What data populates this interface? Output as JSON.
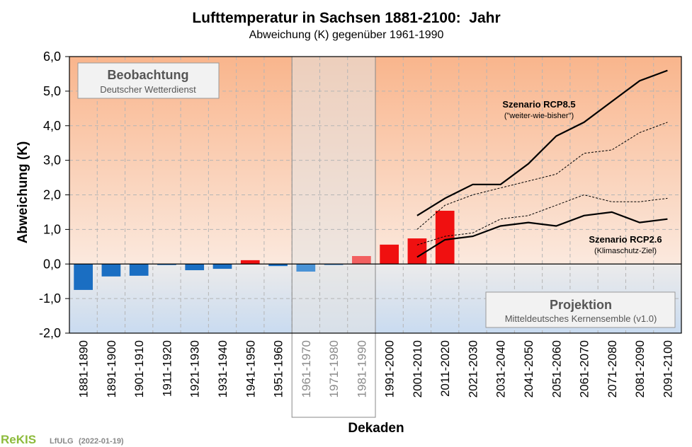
{
  "chart_data": {
    "type": "bar",
    "title": "Lufttemperatur in Sachsen 1881-2100:  Jahr",
    "subtitle": "Abweichung (K) gegenüber 1961-1990",
    "xlabel": "Dekaden",
    "ylabel": "Abweichung (K)",
    "ylim": [
      -2,
      6
    ],
    "yticks": [
      "-2,0",
      "-1,0",
      "0,0",
      "1,0",
      "2,0",
      "3,0",
      "4,0",
      "5,0",
      "6,0"
    ],
    "grid": true,
    "reference_period": "1961-1990",
    "categories": [
      "1881-1890",
      "1891-1900",
      "1901-1910",
      "1911-1920",
      "1921-1930",
      "1931-1940",
      "1941-1950",
      "1951-1960",
      "1961-1970",
      "1971-1980",
      "1981-1990",
      "1991-2000",
      "2001-2010",
      "2011-2020",
      "2021-2030",
      "2031-2040",
      "2041-2050",
      "2051-2060",
      "2061-2070",
      "2071-2080",
      "2081-2090",
      "2091-2100"
    ],
    "observation": {
      "name": "Beobachtung",
      "values": [
        -0.75,
        -0.36,
        -0.34,
        -0.03,
        -0.18,
        -0.14,
        0.11,
        -0.06,
        -0.22,
        -0.03,
        0.23,
        0.56,
        0.74,
        1.54
      ]
    },
    "projection_lines": [
      {
        "name": "Szenario RCP8.5",
        "style": "solid",
        "start_index": 12,
        "values": [
          1.4,
          1.9,
          2.3,
          2.3,
          2.9,
          3.7,
          4.1,
          4.7,
          5.3,
          5.6
        ]
      },
      {
        "name": "Szenario RCP8.5",
        "style": "dotted",
        "start_index": 12,
        "values": [
          1.0,
          1.7,
          2.0,
          2.2,
          2.4,
          2.6,
          3.2,
          3.3,
          3.8,
          4.1
        ]
      },
      {
        "name": "Szenario RCP2.6",
        "style": "dotted",
        "start_index": 12,
        "values": [
          0.55,
          0.8,
          0.9,
          1.3,
          1.4,
          1.7,
          2.0,
          1.8,
          1.8,
          1.9
        ]
      },
      {
        "name": "Szenario RCP2.6",
        "style": "solid",
        "start_index": 12,
        "values": [
          0.2,
          0.7,
          0.8,
          1.1,
          1.2,
          1.1,
          1.4,
          1.5,
          1.2,
          1.3
        ]
      }
    ],
    "annotations": {
      "rcp85_title": "Szenario RCP8.5",
      "rcp85_sub": "(\"weiter-wie-bisher\")",
      "rcp26_title": "Szenario RCP2.6",
      "rcp26_sub": "(Klimaschutz-Ziel)"
    },
    "boxes": {
      "observation_title": "Beobachtung",
      "observation_sub": "Deutscher Wetterdienst",
      "projection_title": "Projektion",
      "projection_sub": "Mitteldeutsches Kernensemble (v1.0)"
    },
    "colors": {
      "negative": "#1a6ec2",
      "positive": "#f01010",
      "ref_negative": "#4a93d6",
      "ref_positive": "#f26060",
      "top_gradient": "#f9b58c",
      "bottom_gradient": "#c9dbf0"
    }
  },
  "footer": {
    "logo": "ReKIS",
    "org": "LfULG",
    "date": "(2022-01-19)"
  }
}
